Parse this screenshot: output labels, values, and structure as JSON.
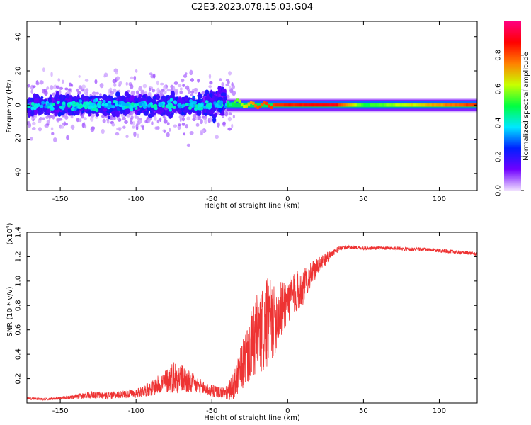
{
  "figure": {
    "title": "C2E3.2023.078.15.03.G04"
  },
  "chart_data": [
    {
      "type": "heatmap",
      "name": "spectrogram",
      "xlabel": "Height of straight line (km)",
      "ylabel": "Frequency (Hz)",
      "xlim": [
        -172,
        125
      ],
      "ylim": [
        -50,
        49
      ],
      "xticks": [
        -150,
        -100,
        -50,
        0,
        50,
        100
      ],
      "yticks": [
        -40,
        -20,
        0,
        20,
        40
      ],
      "colorbar": {
        "label": "Normalized spectral amplitude",
        "range": [
          0,
          1
        ],
        "ticks": [
          0.0,
          0.2,
          0.4,
          0.6,
          0.8
        ],
        "colormap": [
          "#f0e0ff",
          "#7000ff",
          "#0020ff",
          "#00e8ff",
          "#00ff40",
          "#c8ff00",
          "#ff8000",
          "#ff0000",
          "#ff0080"
        ]
      },
      "description_of_content": {
        "scatter_band_x": [
          -172,
          -40
        ],
        "scatter_band_y": [
          -10,
          10
        ],
        "tone_band_x": [
          -40,
          125
        ],
        "tone_frequency": 0,
        "tone_amplitude_near_x": [
          [
            -40,
            0.45
          ],
          [
            -20,
            0.8
          ],
          [
            0,
            0.85
          ],
          [
            30,
            0.9
          ],
          [
            50,
            0.5
          ],
          [
            125,
            0.85
          ]
        ]
      },
      "grid": false
    },
    {
      "type": "line",
      "name": "snr",
      "xlabel": "Height of straight line (km)",
      "ylabel": "SNR (10 * v/v)",
      "multiplier_label": "(x10",
      "multiplier_exponent": "4",
      "multiplier_close": ")",
      "xlim": [
        -172,
        125
      ],
      "ylim": [
        0,
        1.4
      ],
      "xticks": [
        -150,
        -100,
        -50,
        0,
        50,
        100
      ],
      "yticks": [
        0.2,
        0.4,
        0.6,
        0.8,
        1.0,
        1.2,
        1.4
      ],
      "line_color": "#ee3333",
      "series": [
        {
          "x": [
            -172,
            -160,
            -150,
            -140,
            -130,
            -120,
            -110,
            -100,
            -90,
            -80,
            -75,
            -70,
            -65,
            -60,
            -55,
            -50,
            -45,
            -40,
            -35,
            -30,
            -25,
            -20,
            -15,
            -12,
            -10,
            -5,
            0,
            5,
            10,
            15,
            20,
            25,
            30,
            35,
            40,
            50,
            60,
            70,
            80,
            90,
            100,
            110,
            120,
            125
          ],
          "values": [
            0.04,
            0.03,
            0.04,
            0.05,
            0.07,
            0.06,
            0.07,
            0.08,
            0.12,
            0.18,
            0.22,
            0.2,
            0.17,
            0.14,
            0.12,
            0.1,
            0.09,
            0.08,
            0.15,
            0.3,
            0.45,
            0.55,
            0.6,
            0.7,
            0.65,
            0.75,
            0.85,
            0.9,
            0.95,
            1.05,
            1.12,
            1.18,
            1.24,
            1.27,
            1.28,
            1.27,
            1.27,
            1.27,
            1.26,
            1.26,
            1.25,
            1.24,
            1.23,
            1.22
          ],
          "noise_amplitude": [
            0.01,
            0.01,
            0.01,
            0.02,
            0.03,
            0.03,
            0.03,
            0.04,
            0.06,
            0.1,
            0.14,
            0.12,
            0.1,
            0.08,
            0.06,
            0.05,
            0.05,
            0.06,
            0.12,
            0.2,
            0.28,
            0.35,
            0.38,
            0.35,
            0.3,
            0.25,
            0.2,
            0.18,
            0.15,
            0.1,
            0.07,
            0.05,
            0.03,
            0.02,
            0.015,
            0.015,
            0.015,
            0.015,
            0.015,
            0.015,
            0.015,
            0.015,
            0.015,
            0.015
          ]
        }
      ],
      "grid": false
    }
  ]
}
